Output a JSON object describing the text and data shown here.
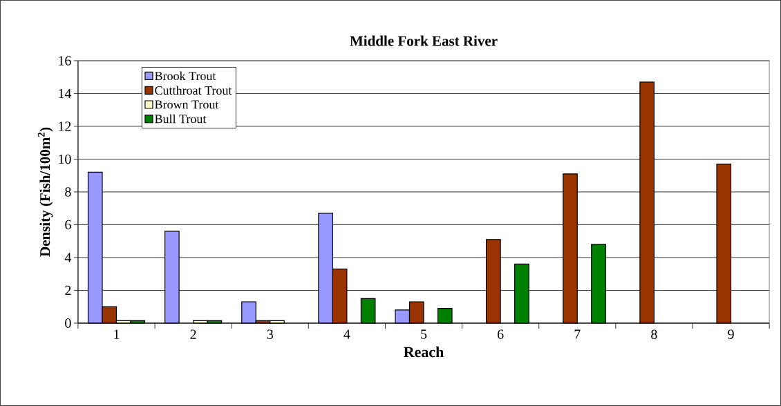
{
  "chart_data": {
    "type": "bar",
    "title": "Middle Fork East River",
    "xlabel": "Reach",
    "ylabel": "Density (Fish/100m$^{2}$)",
    "categories": [
      "1",
      "2",
      "3",
      "4",
      "5",
      "6",
      "7",
      "8",
      "9"
    ],
    "series": [
      {
        "name": "Brook Trout",
        "color": "#9999ff",
        "values": [
          9.2,
          5.6,
          1.3,
          6.7,
          0.8,
          null,
          null,
          null,
          null
        ]
      },
      {
        "name": "Cutthroat Trout",
        "color": "#993300",
        "values": [
          1.0,
          null,
          0.15,
          3.3,
          1.3,
          5.1,
          9.1,
          14.7,
          9.7
        ]
      },
      {
        "name": "Brown Trout",
        "color": "#ffffcc",
        "values": [
          0.15,
          0.15,
          0.15,
          null,
          null,
          null,
          null,
          null,
          null
        ]
      },
      {
        "name": "Bull Trout",
        "color": "#008000",
        "values": [
          0.15,
          0.15,
          null,
          1.5,
          0.9,
          3.6,
          4.8,
          null,
          null
        ]
      }
    ],
    "ylim": [
      0,
      16
    ],
    "yticks": [
      0,
      2,
      4,
      6,
      8,
      10,
      12,
      14,
      16
    ],
    "grid": "y",
    "legend": "top left"
  }
}
